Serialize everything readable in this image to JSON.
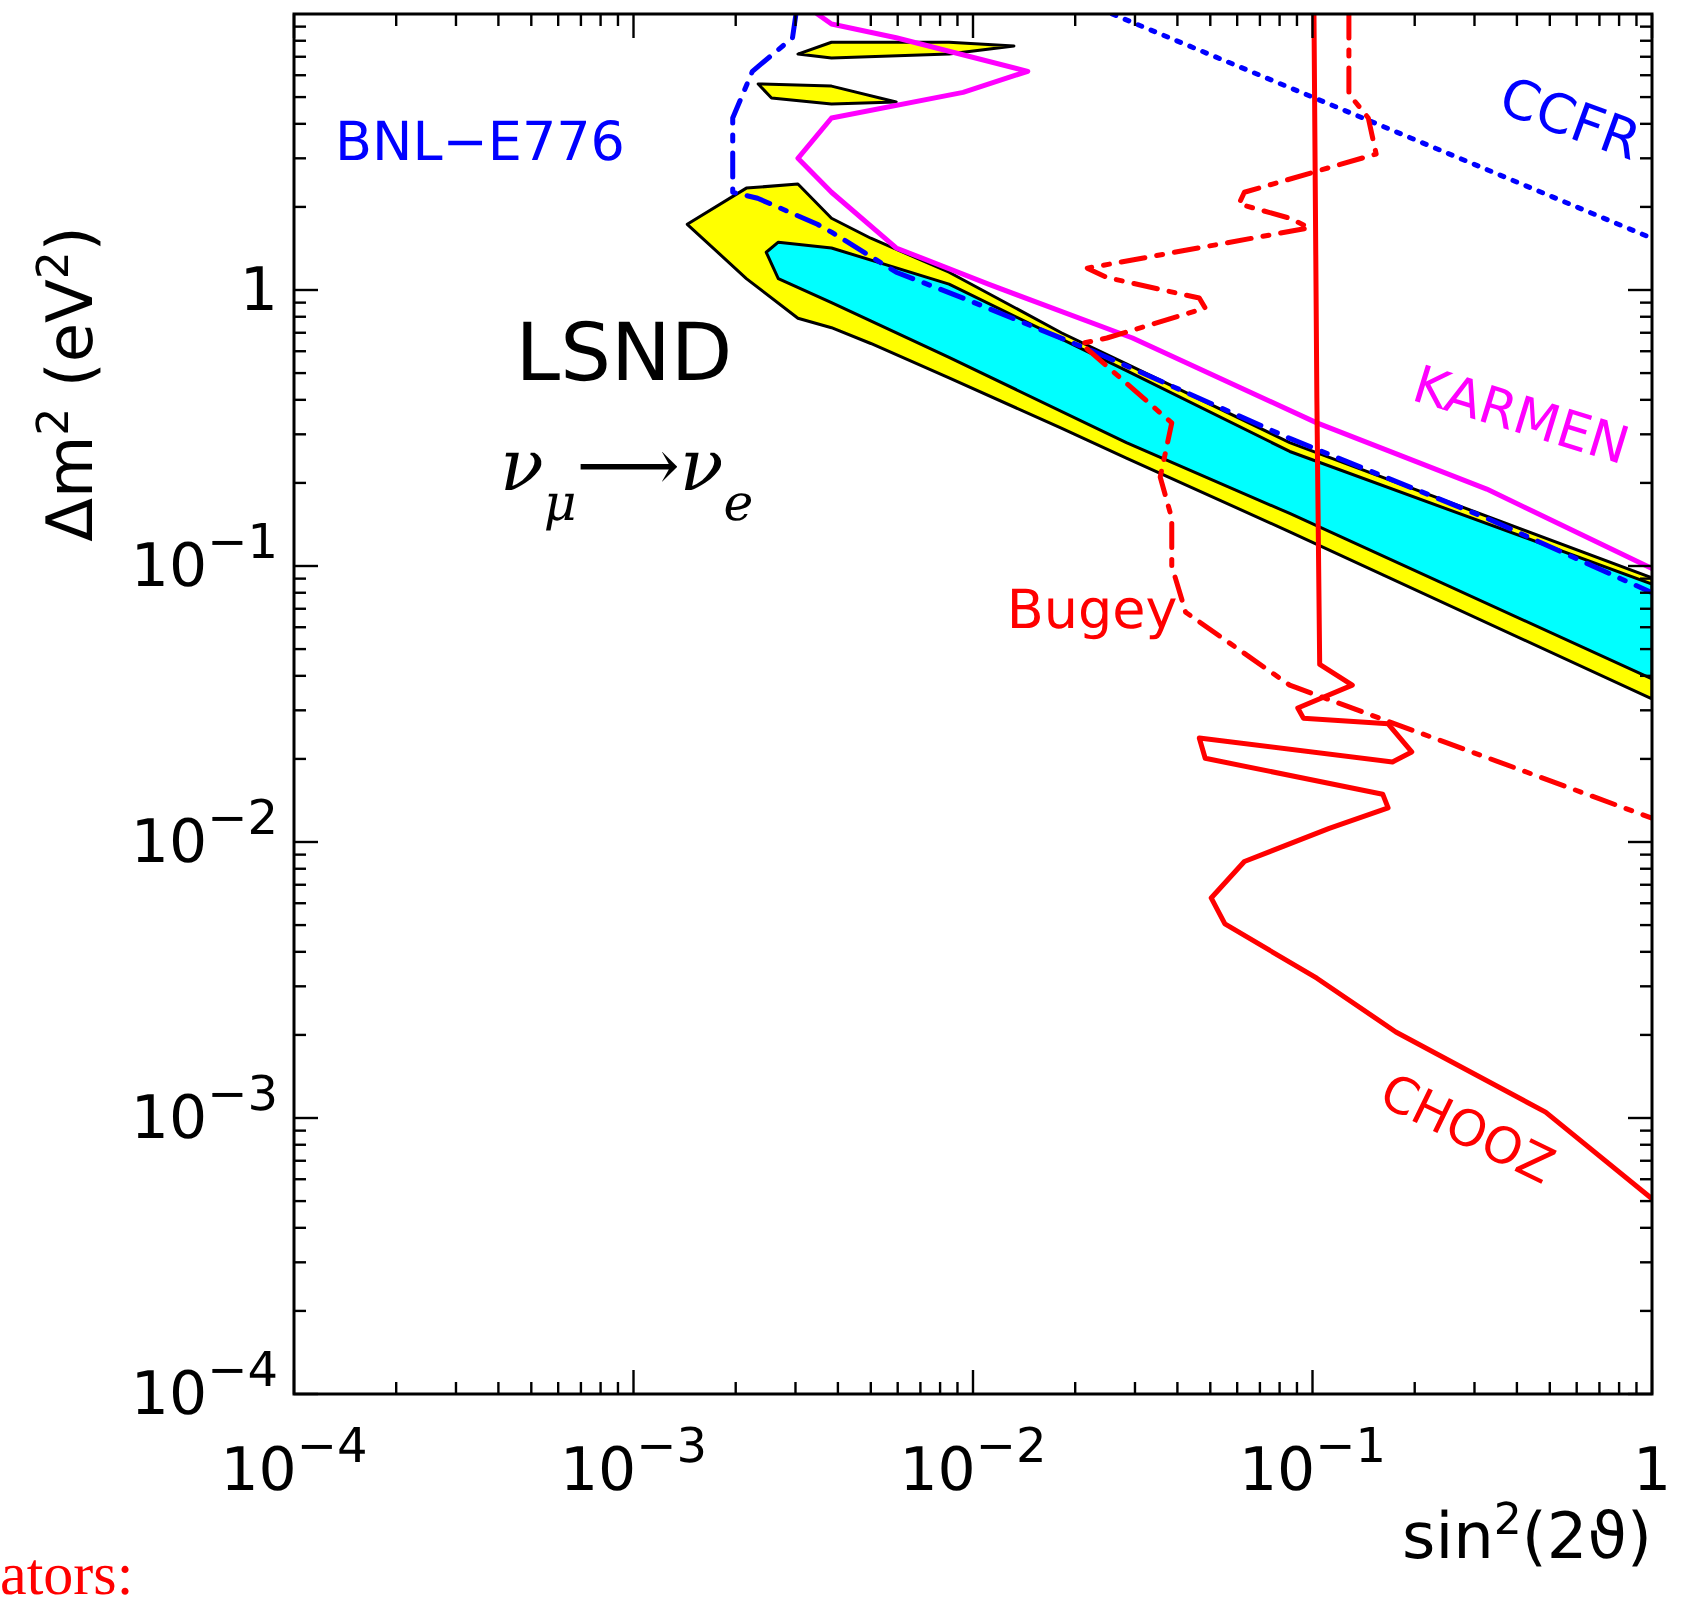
{
  "chart_data": {
    "type": "line",
    "xlabel": "sin$^{2}$(2ϑ)",
    "ylabel": "Δm$^{2}$ (eV$^{2}$)",
    "log": "xy",
    "grid": false,
    "legend": false,
    "xlim": [
      0.0001,
      1
    ],
    "ylim": [
      0.0001,
      10
    ],
    "xticks": [
      {
        "value": 0.0001,
        "label": "10$^{−4}$"
      },
      {
        "value": 0.0002,
        "label": null
      },
      {
        "value": 0.0003,
        "label": null
      },
      {
        "value": 0.0004,
        "label": null
      },
      {
        "value": 0.0005,
        "label": null
      },
      {
        "value": 0.0006,
        "label": null
      },
      {
        "value": 0.0007,
        "label": null
      },
      {
        "value": 0.0008,
        "label": null
      },
      {
        "value": 0.0009,
        "label": null
      },
      {
        "value": 0.001,
        "label": "10$^{−3}$"
      },
      {
        "value": 0.002,
        "label": null
      },
      {
        "value": 0.003,
        "label": null
      },
      {
        "value": 0.004,
        "label": null
      },
      {
        "value": 0.005,
        "label": null
      },
      {
        "value": 0.006,
        "label": null
      },
      {
        "value": 0.007,
        "label": null
      },
      {
        "value": 0.008,
        "label": null
      },
      {
        "value": 0.009,
        "label": null
      },
      {
        "value": 0.01,
        "label": "10$^{−2}$"
      },
      {
        "value": 0.02,
        "label": null
      },
      {
        "value": 0.03,
        "label": null
      },
      {
        "value": 0.04,
        "label": null
      },
      {
        "value": 0.05,
        "label": null
      },
      {
        "value": 0.06,
        "label": null
      },
      {
        "value": 0.07,
        "label": null
      },
      {
        "value": 0.08,
        "label": null
      },
      {
        "value": 0.09,
        "label": null
      },
      {
        "value": 0.1,
        "label": "10$^{−1}$"
      },
      {
        "value": 0.2,
        "label": null
      },
      {
        "value": 0.3,
        "label": null
      },
      {
        "value": 0.4,
        "label": null
      },
      {
        "value": 0.5,
        "label": null
      },
      {
        "value": 0.6,
        "label": null
      },
      {
        "value": 0.7,
        "label": null
      },
      {
        "value": 0.8,
        "label": null
      },
      {
        "value": 0.9,
        "label": null
      },
      1
    ],
    "yticks": [
      {
        "value": 0.0001,
        "label": "10$^{−4}$"
      },
      {
        "value": 0.0002,
        "label": null
      },
      {
        "value": 0.0003,
        "label": null
      },
      {
        "value": 0.0004,
        "label": null
      },
      {
        "value": 0.0005,
        "label": null
      },
      {
        "value": 0.0006,
        "label": null
      },
      {
        "value": 0.0007,
        "label": null
      },
      {
        "value": 0.0008,
        "label": null
      },
      {
        "value": 0.0009,
        "label": null
      },
      {
        "value": 0.001,
        "label": "10$^{−3}$"
      },
      {
        "value": 0.002,
        "label": null
      },
      {
        "value": 0.003,
        "label": null
      },
      {
        "value": 0.004,
        "label": null
      },
      {
        "value": 0.005,
        "label": null
      },
      {
        "value": 0.006,
        "label": null
      },
      {
        "value": 0.007,
        "label": null
      },
      {
        "value": 0.008,
        "label": null
      },
      {
        "value": 0.009,
        "label": null
      },
      {
        "value": 0.01,
        "label": "10$^{−2}$"
      },
      {
        "value": 0.02,
        "label": null
      },
      {
        "value": 0.03,
        "label": null
      },
      {
        "value": 0.04,
        "label": null
      },
      {
        "value": 0.05,
        "label": null
      },
      {
        "value": 0.06,
        "label": null
      },
      {
        "value": 0.07,
        "label": null
      },
      {
        "value": 0.08,
        "label": null
      },
      {
        "value": 0.09,
        "label": null
      },
      {
        "value": 0.1,
        "label": "10$^{−1}$"
      },
      {
        "value": 0.2,
        "label": null
      },
      {
        "value": 0.3,
        "label": null
      },
      {
        "value": 0.4,
        "label": null
      },
      {
        "value": 0.5,
        "label": null
      },
      {
        "value": 0.6,
        "label": null
      },
      {
        "value": 0.7,
        "label": null
      },
      {
        "value": 0.8,
        "label": null
      },
      {
        "value": 0.9,
        "label": null
      },
      1,
      {
        "value": 2,
        "label": null
      },
      {
        "value": 3,
        "label": null
      },
      {
        "value": 4,
        "label": null
      },
      {
        "value": 5,
        "label": null
      },
      {
        "value": 6,
        "label": null
      },
      {
        "value": 7,
        "label": null
      },
      {
        "value": 8,
        "label": null
      },
      {
        "value": 9,
        "label": null
      }
    ],
    "series": [
      {
        "type": "area",
        "color": "#ffff00",
        "x": [
          0.00144,
          0.00215,
          0.00305,
          0.00383,
          0.005,
          0.0085,
          0.0182,
          0.0283,
          0.0857,
          1,
          1,
          0.0857,
          0.0283,
          0.0182,
          0.0085,
          0.005,
          0.00383,
          0.00305,
          0.00215
        ],
        "values": [
          1.73,
          2.34,
          2.42,
          1.82,
          1.54,
          1.16,
          0.7,
          0.54,
          0.28,
          0.0905,
          0.033,
          0.133,
          0.246,
          0.316,
          0.48,
          0.64,
          0.73,
          0.79,
          1.1
        ]
      },
      {
        "type": "area",
        "color": "#ffff00",
        "x": [
          0.00305,
          0.00383,
          0.0085,
          0.0132,
          0.0085,
          0.00383
        ],
        "values": [
          7.16,
          7.9,
          7.9,
          7.66,
          7.16,
          6.93
        ]
      },
      {
        "type": "area",
        "color": "#ffff00",
        "x": [
          0.00233,
          0.00383,
          0.00594,
          0.00383,
          0.00255
        ],
        "values": [
          5.58,
          5.48,
          4.8,
          4.72,
          4.96
        ]
      },
      {
        "type": "area",
        "color": "#00ffff",
        "x": [
          0.00246,
          0.00267,
          0.00383,
          0.0085,
          0.0283,
          0.0857,
          1,
          1,
          0.0857,
          0.0283,
          0.0085,
          0.00383,
          0.00267
        ],
        "values": [
          1.37,
          1.49,
          1.42,
          1.05,
          0.51,
          0.26,
          0.086,
          0.039,
          0.155,
          0.28,
          0.57,
          0.9,
          1.1
        ]
      },
      {
        "name": "BNL−E776",
        "color": "#0000ff",
        "line_style": "dashed",
        "x": [
          0.00301,
          0.00294,
          0.00224,
          0.00196,
          0.00196,
          0.00232,
          0.00348,
          0.00383,
          0.00594,
          0.00935,
          0.0226,
          0.0857,
          0.326,
          1
        ],
        "values": [
          10,
          8.2,
          6.2,
          4.2,
          2.26,
          2.15,
          1.73,
          1.62,
          1.16,
          0.935,
          0.6,
          0.29,
          0.149,
          0.08
        ]
      },
      {
        "name": "KARMEN",
        "color": "#ff00ff",
        "line_style": "solid",
        "x": [
          0.00348,
          0.00383,
          0.00594,
          0.0145,
          0.00935,
          0.00383,
          0.00305,
          0.00383,
          0.00594,
          0.0111,
          0.0295,
          0.103,
          0.326,
          1
        ],
        "values": [
          10,
          9.2,
          8.2,
          6.2,
          5.2,
          4.2,
          3.0,
          2.26,
          1.42,
          1.05,
          0.67,
          0.33,
          0.19,
          0.098
        ]
      },
      {
        "name": "CCFR",
        "color": "#0000ff",
        "line_style": "dotted",
        "x": [
          0.0257,
          0.1,
          1
        ],
        "values": [
          10,
          5.0,
          1.54
        ]
      },
      {
        "name": "Bugey",
        "color": "#ff0000",
        "line_style": "dashed",
        "x": [
          0.128,
          0.128,
          0.146,
          0.154,
          0.063,
          0.0607,
          0.0857,
          0.098,
          0.0217,
          0.0248,
          0.0464,
          0.0483,
          0.0248,
          0.0208,
          0.0385,
          0.0356,
          0.0385,
          0.0385,
          0.0423,
          0.0857,
          1
        ],
        "values": [
          10,
          5.13,
          4.2,
          3.11,
          2.26,
          2.05,
          1.82,
          1.68,
          1.2,
          1.11,
          0.935,
          0.86,
          0.67,
          0.64,
          0.33,
          0.21,
          0.149,
          0.1,
          0.068,
          0.037,
          0.0122
        ]
      },
      {
        "name": "CHOOZ",
        "color": "#ff0000",
        "line_style": "solid",
        "x": [
          0.101,
          0.103,
          0.105,
          0.131,
          0.0905,
          0.094,
          0.167,
          0.196,
          0.172,
          0.0464,
          0.0483,
          0.161,
          0.167,
          0.112,
          0.063,
          0.0503,
          0.0552,
          0.103,
          0.176,
          0.486,
          1
        ],
        "values": [
          10,
          0.406,
          0.044,
          0.037,
          0.0306,
          0.0281,
          0.0268,
          0.0212,
          0.0195,
          0.0238,
          0.0201,
          0.0149,
          0.0133,
          0.0112,
          0.0085,
          0.00627,
          0.00505,
          0.00321,
          0.00205,
          0.00105,
          0.00051
        ]
      }
    ],
    "annotations": [
      "LSND",
      "ν$_{μ}$⟶ν$_{e}$",
      "ators:"
    ]
  }
}
